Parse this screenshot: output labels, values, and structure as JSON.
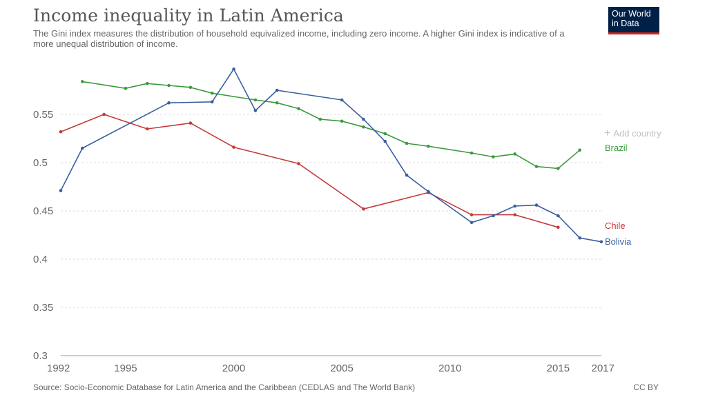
{
  "header": {
    "title": "Income inequality in Latin America",
    "subtitle": "The Gini index measures the distribution of household equivalized income, including zero income. A higher Gini index is indicative of a more unequal distribution of income."
  },
  "logo": {
    "line1": "Our World",
    "line2": "in Data"
  },
  "controls": {
    "add_country_icon": "plus-icon",
    "add_country_label": "Add country"
  },
  "footer": {
    "source": "Source: Socio-Economic Database for Latin America and the Caribbean (CEDLAS and The World Bank)",
    "license": "CC BY"
  },
  "chart_data": {
    "type": "line",
    "title": "Income inequality in Latin America",
    "xlabel": "",
    "ylabel": "",
    "xlim": [
      1992,
      2017
    ],
    "ylim": [
      0.3,
      0.6
    ],
    "x_ticks": [
      1992,
      1995,
      2000,
      2005,
      2010,
      2015,
      2017
    ],
    "y_ticks": [
      0.3,
      0.35,
      0.4,
      0.45,
      0.5,
      0.55
    ],
    "y_tick_labels": [
      "0.3",
      "0.35",
      "0.4",
      "0.45",
      "0.5",
      "0.55"
    ],
    "grid": "horizontal-dashed",
    "series": [
      {
        "name": "Brazil",
        "color": "#3c9a3c",
        "x": [
          1993,
          1995,
          1996,
          1997,
          1998,
          1999,
          2001,
          2002,
          2003,
          2004,
          2005,
          2006,
          2007,
          2008,
          2009,
          2011,
          2012,
          2013,
          2014,
          2015,
          2016
        ],
        "values": [
          0.584,
          0.577,
          0.582,
          0.58,
          0.578,
          0.572,
          0.565,
          0.562,
          0.556,
          0.545,
          0.543,
          0.537,
          0.53,
          0.52,
          0.517,
          0.51,
          0.506,
          0.509,
          0.496,
          0.494,
          0.513
        ]
      },
      {
        "name": "Chile",
        "color": "#c43a3a",
        "x": [
          1992,
          1994,
          1996,
          1998,
          2000,
          2003,
          2006,
          2009,
          2011,
          2013,
          2015
        ],
        "values": [
          0.532,
          0.55,
          0.535,
          0.541,
          0.516,
          0.499,
          0.452,
          0.469,
          0.446,
          0.446,
          0.433
        ]
      },
      {
        "name": "Bolivia",
        "color": "#3a5f9e",
        "x": [
          1992,
          1993,
          1997,
          1999,
          2000,
          2001,
          2002,
          2005,
          2006,
          2007,
          2008,
          2009,
          2011,
          2012,
          2013,
          2014,
          2015,
          2016,
          2017
        ],
        "values": [
          0.471,
          0.515,
          0.562,
          0.563,
          0.597,
          0.554,
          0.575,
          0.565,
          0.545,
          0.522,
          0.487,
          0.47,
          0.438,
          0.445,
          0.455,
          0.456,
          0.445,
          0.422,
          0.418
        ]
      }
    ],
    "series_labels": [
      "Brazil",
      "Chile",
      "Bolivia"
    ]
  }
}
